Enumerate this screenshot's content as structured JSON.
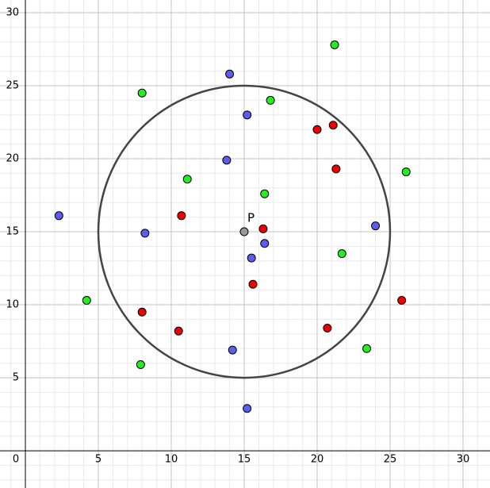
{
  "chart_data": {
    "type": "scatter",
    "xlim": [
      -1.74,
      31.85
    ],
    "ylim": [
      -2.55,
      30.87
    ],
    "xticks": [
      0,
      5,
      10,
      15,
      20,
      25,
      30
    ],
    "yticks": [
      5,
      10,
      15,
      20,
      25,
      30
    ],
    "grid": true,
    "minor_grid": 1,
    "series": [
      {
        "color": "#5c5cf0",
        "x": [
          2.3,
          14.0,
          15.2,
          13.8,
          8.2,
          16.4,
          15.5,
          24.0,
          14.2,
          15.2
        ],
        "values": [
          16.1,
          25.8,
          23.0,
          19.9,
          14.9,
          14.2,
          13.2,
          15.4,
          6.9,
          2.9
        ]
      },
      {
        "color": "#22ee22",
        "x": [
          21.2,
          8.0,
          16.8,
          11.1,
          16.4,
          26.1,
          21.7,
          4.2,
          23.4,
          7.9
        ],
        "values": [
          27.8,
          24.5,
          24.0,
          18.6,
          17.6,
          19.1,
          13.5,
          10.3,
          7.0,
          5.9
        ]
      },
      {
        "color": "#ee0000",
        "x": [
          20.0,
          21.1,
          21.3,
          10.7,
          16.3,
          15.6,
          8.0,
          10.5,
          20.7,
          25.8
        ],
        "values": [
          22.0,
          22.3,
          19.3,
          16.1,
          15.2,
          11.4,
          9.5,
          8.2,
          8.4,
          10.3
        ]
      }
    ],
    "point": {
      "label": "P",
      "x": 15,
      "y": 15,
      "color": "#999999"
    },
    "circle": {
      "center": [
        15,
        15
      ],
      "radius": 10,
      "color": "#444444"
    }
  }
}
